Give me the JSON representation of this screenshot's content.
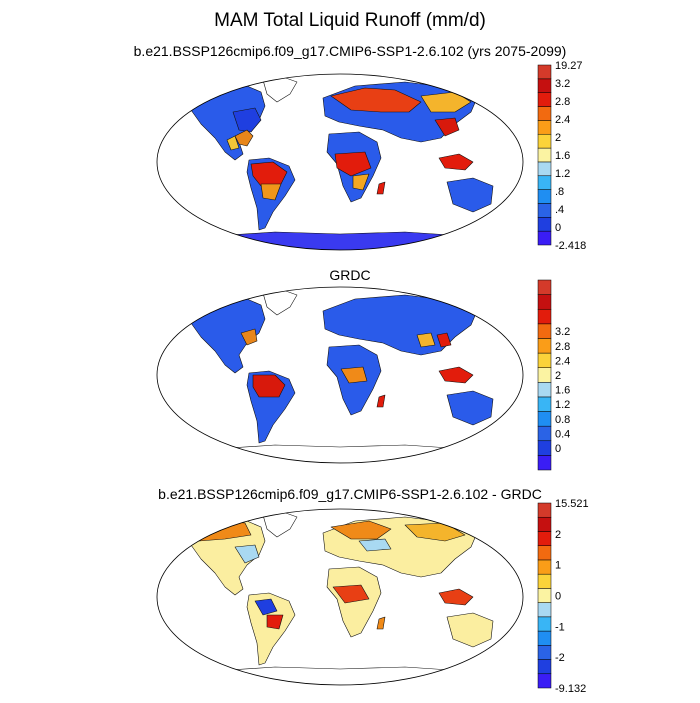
{
  "title": "MAM Total Liquid Runoff (mm/d)",
  "panels": [
    {
      "id": "model",
      "title": "b.e21.BSSP126cmip6.f09_g17.CMIP6-SSP1-2.6.102 (yrs 2075-2099)",
      "colorbar": {
        "colors": [
          "#3a1df5",
          "#1f3fe0",
          "#2a63e6",
          "#1f8ef2",
          "#39b5f5",
          "#a9d9f2",
          "#fbf3a2",
          "#fbd33a",
          "#fa9d18",
          "#f26a10",
          "#e21c0c",
          "#c51010",
          "#d43a2a"
        ],
        "labels": [
          "-2.418",
          "0",
          ".4",
          ".8",
          "1.2",
          "1.6",
          "2",
          "2.4",
          "2.8",
          "3.2",
          "19.27"
        ]
      }
    },
    {
      "id": "obs",
      "title": "GRDC",
      "colorbar": {
        "colors": [
          "#3a1df5",
          "#1f3fe0",
          "#2a63e6",
          "#1f8ef2",
          "#39b5f5",
          "#a9d9f2",
          "#fbf3a2",
          "#fbd33a",
          "#fa9d18",
          "#f26a10",
          "#e21c0c",
          "#c51010",
          "#d43a2a"
        ],
        "labels": [
          "0",
          "0.4",
          "0.8",
          "1.2",
          "1.6",
          "2",
          "2.4",
          "2.8",
          "3.2"
        ]
      }
    },
    {
      "id": "diff",
      "title": "b.e21.BSSP126cmip6.f09_g17.CMIP6-SSP1-2.6.102 - GRDC",
      "colorbar": {
        "colors": [
          "#3a1df5",
          "#1f3fe0",
          "#2a63e6",
          "#1f8ef2",
          "#39b5f5",
          "#a9d9f2",
          "#fbf3a2",
          "#fbd33a",
          "#fa9d18",
          "#f26a10",
          "#e21c0c",
          "#c51010",
          "#d43a2a"
        ],
        "labels": [
          "-9.132",
          "-2",
          "-1",
          "0",
          "1",
          "2",
          "15.521"
        ]
      }
    }
  ]
}
